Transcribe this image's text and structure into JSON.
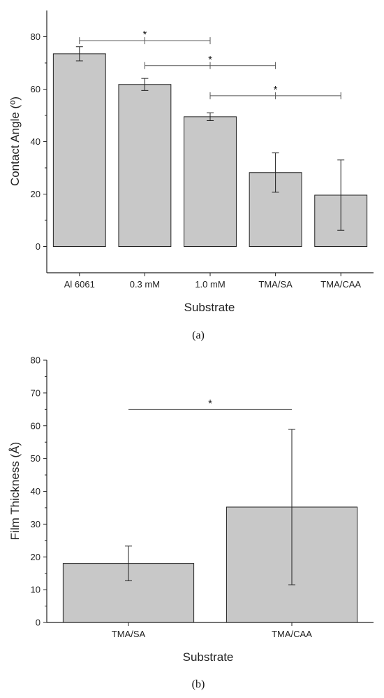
{
  "chart_data": [
    {
      "type": "bar",
      "panel_label": "(a)",
      "xlabel": "Substrate",
      "ylabel": "Contact Angle (º)",
      "categories": [
        "Al 6061",
        "0.3 mM",
        "1.0 mM",
        "TMA/SA",
        "TMA/CAA"
      ],
      "values": [
        73.5,
        61.8,
        49.5,
        28.2,
        19.6
      ],
      "errors": [
        2.7,
        2.3,
        1.5,
        7.5,
        13.4
      ],
      "ylim": [
        -10,
        90
      ],
      "yticks": [
        0,
        20,
        40,
        60,
        80
      ],
      "significance": [
        {
          "from": 0,
          "to": 2,
          "y": 78.5,
          "label": "*"
        },
        {
          "from": 1,
          "to": 3,
          "y": 69.0,
          "label": "*"
        },
        {
          "from": 2,
          "to": 4,
          "y": 57.5,
          "label": "*"
        }
      ],
      "bar_color": "#c8c8c8",
      "grid": false
    },
    {
      "type": "bar",
      "panel_label": "(b)",
      "xlabel": "Substrate",
      "ylabel": "Film Thickness (Å)",
      "categories": [
        "TMA/SA",
        "TMA/CAA"
      ],
      "values": [
        18.0,
        35.2
      ],
      "errors": [
        5.3,
        23.7
      ],
      "ylim": [
        0,
        80
      ],
      "yticks": [
        0,
        10,
        20,
        30,
        40,
        50,
        60,
        70,
        80
      ],
      "significance": [
        {
          "from": 0,
          "to": 1,
          "y": 65,
          "label": "*"
        }
      ],
      "bar_color": "#c8c8c8",
      "grid": false
    }
  ]
}
